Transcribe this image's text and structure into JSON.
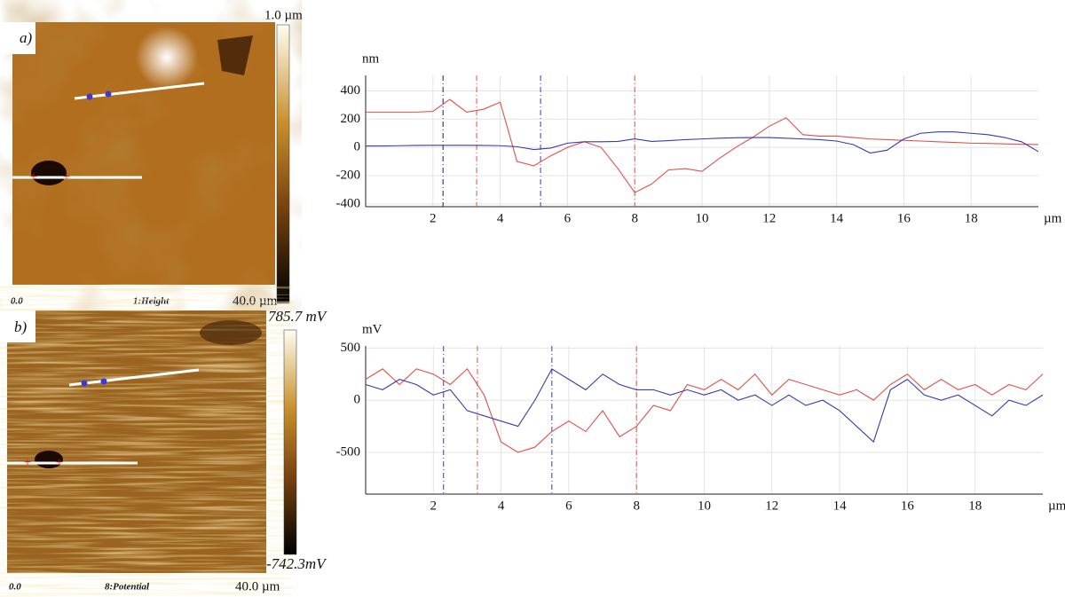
{
  "images": [
    {
      "label": "a)",
      "scale_top": "1.0 µm",
      "x_start": "0.0",
      "channel": "1:Height",
      "x_end": "40.0 µm"
    },
    {
      "label": "b)",
      "scale_top": "785.7 mV",
      "scale_bottom": "-742.3mV",
      "x_start": "0.0",
      "channel": "8:Potential",
      "x_end": "40.0 µm"
    }
  ],
  "chart_data": [
    {
      "type": "line",
      "y_unit": "nm",
      "x_unit": "µm",
      "x": [
        0,
        0.5,
        1,
        1.5,
        2,
        2.5,
        3,
        3.5,
        4,
        4.5,
        5,
        5.5,
        6,
        6.5,
        7,
        7.5,
        8,
        8.5,
        9,
        9.5,
        10,
        10.5,
        11,
        11.5,
        12,
        12.5,
        13,
        13.5,
        14,
        14.5,
        15,
        15.5,
        16,
        16.5,
        17,
        17.5,
        18,
        18.5,
        19,
        19.5,
        20
      ],
      "series": [
        {
          "color": "#e0504a",
          "values": [
            250,
            250,
            250,
            250,
            255,
            340,
            250,
            270,
            320,
            -100,
            -130,
            -60,
            0,
            40,
            0,
            -150,
            -320,
            -260,
            -160,
            -150,
            -170,
            -80,
            0,
            70,
            150,
            210,
            90,
            80,
            80,
            70,
            60,
            55,
            50,
            45,
            40,
            35,
            30,
            28,
            25,
            22,
            20
          ]
        },
        {
          "color": "#3a3aa8",
          "values": [
            10,
            10,
            12,
            14,
            15,
            15,
            15,
            14,
            12,
            5,
            -15,
            -5,
            30,
            40,
            40,
            42,
            60,
            42,
            48,
            55,
            60,
            65,
            68,
            70,
            70,
            65,
            60,
            55,
            45,
            20,
            -40,
            -20,
            60,
            100,
            110,
            110,
            100,
            90,
            70,
            40,
            -30
          ]
        }
      ],
      "xlim": [
        0,
        20
      ],
      "xticks": [
        2,
        4,
        6,
        8,
        10,
        12,
        14,
        16,
        18
      ],
      "ylim": [
        -420,
        510
      ],
      "yticks": [
        -400,
        -200,
        0,
        200,
        400
      ],
      "grid": true,
      "markers": [
        {
          "x": 2.3,
          "color": "#1a1a60"
        },
        {
          "x": 3.3,
          "color": "#e0504a"
        },
        {
          "x": 5.2,
          "color": "#3a3aa8"
        },
        {
          "x": 8,
          "color": "#e0504a"
        }
      ]
    },
    {
      "type": "line",
      "y_unit": "mV",
      "x_unit": "µm",
      "x": [
        0,
        0.5,
        1,
        1.5,
        2,
        2.5,
        3,
        3.5,
        4,
        4.5,
        5,
        5.5,
        6,
        6.5,
        7,
        7.5,
        8,
        8.5,
        9,
        9.5,
        10,
        10.5,
        11,
        11.5,
        12,
        12.5,
        13,
        13.5,
        14,
        14.5,
        15,
        15.5,
        16,
        16.5,
        17,
        17.5,
        18,
        18.5,
        19,
        19.5,
        20
      ],
      "series": [
        {
          "color": "#e0504a",
          "values": [
            200,
            300,
            150,
            300,
            250,
            150,
            300,
            50,
            -400,
            -500,
            -450,
            -300,
            -200,
            -300,
            -100,
            -350,
            -250,
            -50,
            -100,
            150,
            100,
            200,
            100,
            250,
            50,
            200,
            150,
            100,
            50,
            100,
            0,
            150,
            250,
            100,
            200,
            100,
            150,
            50,
            150,
            100,
            250
          ]
        },
        {
          "color": "#3a3aa8",
          "values": [
            150,
            100,
            200,
            150,
            50,
            100,
            -100,
            -150,
            -200,
            -250,
            0,
            300,
            200,
            100,
            250,
            150,
            100,
            100,
            50,
            100,
            50,
            100,
            0,
            50,
            -50,
            50,
            -50,
            0,
            -100,
            -250,
            -400,
            100,
            200,
            50,
            0,
            50,
            -50,
            -150,
            0,
            -50,
            50
          ]
        }
      ],
      "xlim": [
        0,
        20
      ],
      "xticks": [
        2,
        4,
        6,
        8,
        10,
        12,
        14,
        16,
        18
      ],
      "ylim": [
        -900,
        520
      ],
      "yticks": [
        -500,
        0,
        500
      ],
      "grid": true,
      "markers": [
        {
          "x": 2.3,
          "color": "#3a3aa8"
        },
        {
          "x": 3.3,
          "color": "#e0504a"
        },
        {
          "x": 5.5,
          "color": "#3a3aa8"
        },
        {
          "x": 8,
          "color": "#e0504a"
        }
      ]
    }
  ]
}
